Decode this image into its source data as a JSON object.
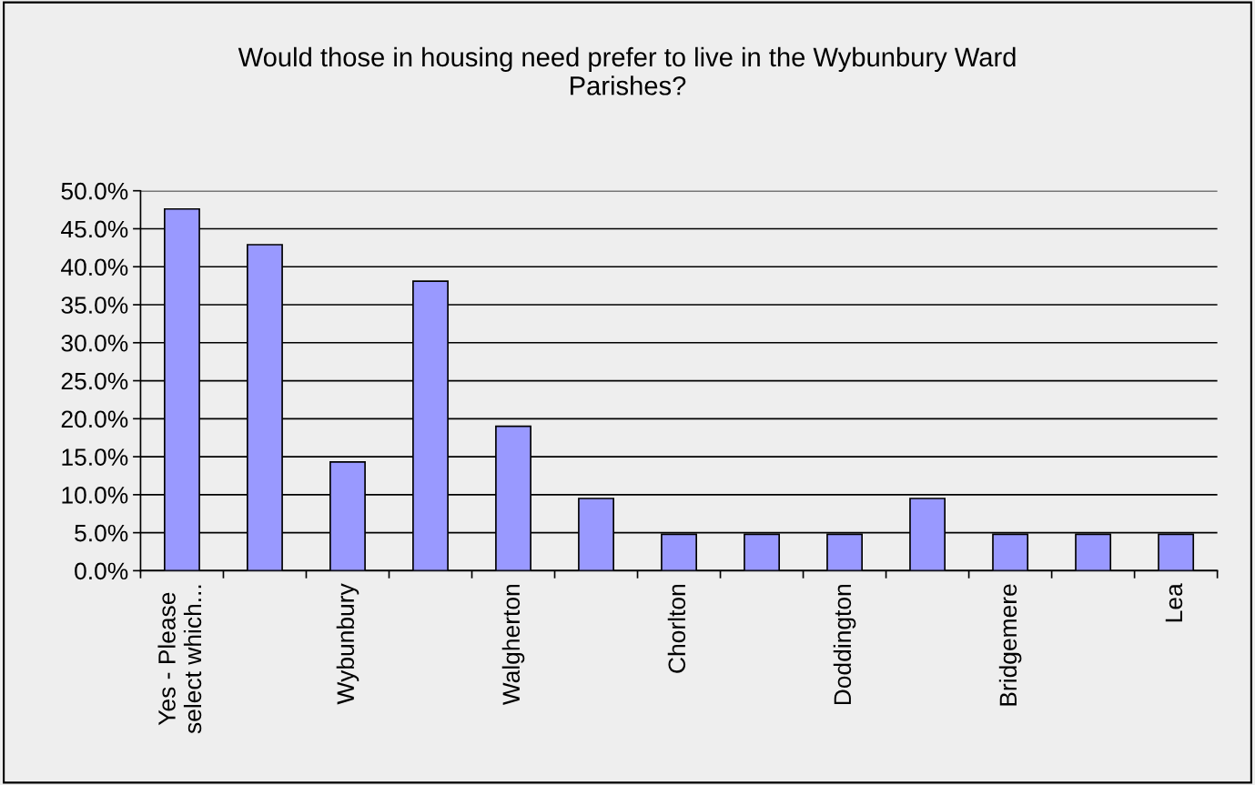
{
  "chart_data": {
    "type": "bar",
    "title": "Would those in housing need prefer to live in the Wybunbury Ward\nParishes?",
    "categories": [
      "Yes - Please\nselect which...",
      null,
      "Wybunbury",
      null,
      "Walgherton",
      null,
      "Chorlton",
      null,
      "Doddington",
      null,
      "Bridgemere",
      null,
      "Lea"
    ],
    "values": [
      47.6,
      42.9,
      14.3,
      38.1,
      19.0,
      9.5,
      4.8,
      4.8,
      4.8,
      9.5,
      4.8,
      4.8,
      4.8
    ],
    "color": "#9999ff",
    "ylim": [
      0,
      50
    ],
    "yticks": [
      {
        "value": 0,
        "label": "0.0%"
      },
      {
        "value": 5,
        "label": "5.0%"
      },
      {
        "value": 10,
        "label": "10.0%"
      },
      {
        "value": 15,
        "label": "15.0%"
      },
      {
        "value": 20,
        "label": "20.0%"
      },
      {
        "value": 25,
        "label": "25.0%"
      },
      {
        "value": 30,
        "label": "30.0%"
      },
      {
        "value": 35,
        "label": "35.0%"
      },
      {
        "value": 40,
        "label": "40.0%"
      },
      {
        "value": 45,
        "label": "45.0%"
      },
      {
        "value": 50,
        "label": "50.0%"
      }
    ],
    "grid": "y",
    "legend": false
  }
}
